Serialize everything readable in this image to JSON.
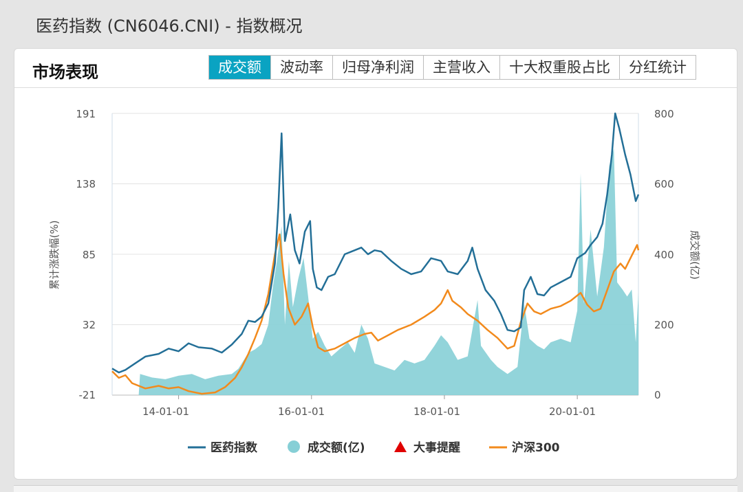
{
  "page": {
    "heading": "医药指数 (CN6046.CNI) - 指数概况"
  },
  "card": {
    "title": "市场表现",
    "tabs": [
      {
        "label": "成交额",
        "active": true
      },
      {
        "label": "波动率",
        "active": false
      },
      {
        "label": "归母净利润",
        "active": false
      },
      {
        "label": "主营收入",
        "active": false
      },
      {
        "label": "十大权重股占比",
        "active": false
      },
      {
        "label": "分红统计",
        "active": false
      }
    ]
  },
  "colors": {
    "index": "#236f97",
    "volume": "#86cfd6",
    "event": "#e00000",
    "csi300": "#f28a1c",
    "accent": "#0aa3c2"
  },
  "chart_data": {
    "type": "line",
    "x_ticks": [
      "14-01-01",
      "16-01-01",
      "18-01-01",
      "20-01-01"
    ],
    "y_left": {
      "label": "累计涨跌幅(%)",
      "ticks": [
        "191",
        "138",
        "85",
        "32",
        "-21"
      ],
      "range": [
        -21,
        191
      ]
    },
    "y_right": {
      "label": "成交额(亿)",
      "ticks": [
        "800",
        "600",
        "400",
        "200",
        "0"
      ],
      "range": [
        0,
        800
      ]
    },
    "legend": [
      {
        "name": "医药指数",
        "marker": "line",
        "color": "#236f97"
      },
      {
        "name": "成交额(亿)",
        "marker": "circle",
        "color": "#86cfd6"
      },
      {
        "name": "大事提醒",
        "marker": "triangle",
        "color": "#e00000"
      },
      {
        "name": "沪深300",
        "marker": "line",
        "color": "#f28a1c"
      }
    ],
    "legend_position": "bottom",
    "grid": true,
    "x_range": [
      2013.0,
      2020.92
    ],
    "series": [
      {
        "name": "医药指数",
        "axis": "left",
        "points": [
          [
            2013.0,
            -1
          ],
          [
            2013.1,
            -4
          ],
          [
            2013.2,
            -2
          ],
          [
            2013.35,
            3
          ],
          [
            2013.5,
            8
          ],
          [
            2013.7,
            10
          ],
          [
            2013.85,
            14
          ],
          [
            2014.0,
            12
          ],
          [
            2014.15,
            18
          ],
          [
            2014.3,
            15
          ],
          [
            2014.5,
            14
          ],
          [
            2014.65,
            11
          ],
          [
            2014.8,
            17
          ],
          [
            2014.95,
            25
          ],
          [
            2015.05,
            35
          ],
          [
            2015.15,
            34
          ],
          [
            2015.25,
            38
          ],
          [
            2015.35,
            48
          ],
          [
            2015.45,
            78
          ],
          [
            2015.5,
            120
          ],
          [
            2015.55,
            176
          ],
          [
            2015.6,
            95
          ],
          [
            2015.68,
            115
          ],
          [
            2015.75,
            88
          ],
          [
            2015.82,
            78
          ],
          [
            2015.9,
            102
          ],
          [
            2015.98,
            110
          ],
          [
            2016.02,
            74
          ],
          [
            2016.08,
            60
          ],
          [
            2016.15,
            58
          ],
          [
            2016.25,
            68
          ],
          [
            2016.35,
            70
          ],
          [
            2016.5,
            85
          ],
          [
            2016.65,
            88
          ],
          [
            2016.75,
            90
          ],
          [
            2016.85,
            85
          ],
          [
            2016.95,
            88
          ],
          [
            2017.05,
            87
          ],
          [
            2017.2,
            80
          ],
          [
            2017.35,
            74
          ],
          [
            2017.5,
            70
          ],
          [
            2017.65,
            72
          ],
          [
            2017.8,
            82
          ],
          [
            2017.95,
            80
          ],
          [
            2018.05,
            72
          ],
          [
            2018.2,
            70
          ],
          [
            2018.35,
            80
          ],
          [
            2018.42,
            90
          ],
          [
            2018.5,
            74
          ],
          [
            2018.62,
            58
          ],
          [
            2018.75,
            50
          ],
          [
            2018.85,
            40
          ],
          [
            2018.95,
            28
          ],
          [
            2019.05,
            27
          ],
          [
            2019.15,
            30
          ],
          [
            2019.2,
            58
          ],
          [
            2019.3,
            68
          ],
          [
            2019.4,
            55
          ],
          [
            2019.5,
            54
          ],
          [
            2019.6,
            60
          ],
          [
            2019.75,
            64
          ],
          [
            2019.9,
            68
          ],
          [
            2020.0,
            82
          ],
          [
            2020.12,
            86
          ],
          [
            2020.2,
            92
          ],
          [
            2020.3,
            98
          ],
          [
            2020.38,
            108
          ],
          [
            2020.45,
            130
          ],
          [
            2020.52,
            160
          ],
          [
            2020.57,
            191
          ],
          [
            2020.63,
            180
          ],
          [
            2020.72,
            160
          ],
          [
            2020.8,
            145
          ],
          [
            2020.88,
            125
          ],
          [
            2020.92,
            130
          ]
        ]
      },
      {
        "name": "沪深300",
        "axis": "left",
        "points": [
          [
            2013.0,
            -3
          ],
          [
            2013.1,
            -8
          ],
          [
            2013.2,
            -6
          ],
          [
            2013.3,
            -12
          ],
          [
            2013.5,
            -16
          ],
          [
            2013.7,
            -14
          ],
          [
            2013.85,
            -16
          ],
          [
            2014.0,
            -15
          ],
          [
            2014.15,
            -18
          ],
          [
            2014.35,
            -20
          ],
          [
            2014.55,
            -19
          ],
          [
            2014.7,
            -15
          ],
          [
            2014.85,
            -8
          ],
          [
            2014.95,
            0
          ],
          [
            2015.05,
            10
          ],
          [
            2015.15,
            22
          ],
          [
            2015.25,
            35
          ],
          [
            2015.35,
            55
          ],
          [
            2015.45,
            85
          ],
          [
            2015.52,
            100
          ],
          [
            2015.58,
            70
          ],
          [
            2015.65,
            45
          ],
          [
            2015.75,
            32
          ],
          [
            2015.85,
            38
          ],
          [
            2015.95,
            48
          ],
          [
            2016.02,
            30
          ],
          [
            2016.1,
            15
          ],
          [
            2016.2,
            12
          ],
          [
            2016.35,
            14
          ],
          [
            2016.5,
            18
          ],
          [
            2016.65,
            22
          ],
          [
            2016.8,
            25
          ],
          [
            2016.9,
            26
          ],
          [
            2017.0,
            20
          ],
          [
            2017.15,
            24
          ],
          [
            2017.3,
            28
          ],
          [
            2017.5,
            32
          ],
          [
            2017.7,
            38
          ],
          [
            2017.85,
            43
          ],
          [
            2017.95,
            48
          ],
          [
            2018.05,
            58
          ],
          [
            2018.12,
            50
          ],
          [
            2018.25,
            45
          ],
          [
            2018.35,
            40
          ],
          [
            2018.5,
            35
          ],
          [
            2018.65,
            28
          ],
          [
            2018.8,
            22
          ],
          [
            2018.95,
            14
          ],
          [
            2019.05,
            16
          ],
          [
            2019.15,
            34
          ],
          [
            2019.25,
            48
          ],
          [
            2019.35,
            42
          ],
          [
            2019.45,
            40
          ],
          [
            2019.6,
            44
          ],
          [
            2019.75,
            46
          ],
          [
            2019.9,
            50
          ],
          [
            2020.05,
            56
          ],
          [
            2020.15,
            47
          ],
          [
            2020.25,
            42
          ],
          [
            2020.35,
            44
          ],
          [
            2020.45,
            58
          ],
          [
            2020.55,
            72
          ],
          [
            2020.65,
            78
          ],
          [
            2020.72,
            74
          ],
          [
            2020.82,
            84
          ],
          [
            2020.9,
            92
          ],
          [
            2020.92,
            88
          ]
        ]
      },
      {
        "name": "成交额(亿)",
        "axis": "right",
        "points": [
          [
            2013.0,
            0
          ],
          [
            2013.4,
            0
          ],
          [
            2013.42,
            60
          ],
          [
            2013.6,
            50
          ],
          [
            2013.8,
            45
          ],
          [
            2014.0,
            55
          ],
          [
            2014.2,
            60
          ],
          [
            2014.4,
            45
          ],
          [
            2014.6,
            55
          ],
          [
            2014.8,
            60
          ],
          [
            2014.9,
            75
          ],
          [
            2015.05,
            120
          ],
          [
            2015.15,
            130
          ],
          [
            2015.25,
            145
          ],
          [
            2015.35,
            200
          ],
          [
            2015.42,
            310
          ],
          [
            2015.48,
            380
          ],
          [
            2015.55,
            480
          ],
          [
            2015.6,
            200
          ],
          [
            2015.66,
            380
          ],
          [
            2015.72,
            250
          ],
          [
            2015.8,
            330
          ],
          [
            2015.88,
            390
          ],
          [
            2015.95,
            280
          ],
          [
            2016.02,
            160
          ],
          [
            2016.1,
            180
          ],
          [
            2016.2,
            140
          ],
          [
            2016.3,
            110
          ],
          [
            2016.42,
            130
          ],
          [
            2016.55,
            150
          ],
          [
            2016.65,
            120
          ],
          [
            2016.75,
            200
          ],
          [
            2016.85,
            160
          ],
          [
            2016.95,
            90
          ],
          [
            2017.1,
            80
          ],
          [
            2017.25,
            70
          ],
          [
            2017.4,
            100
          ],
          [
            2017.55,
            90
          ],
          [
            2017.7,
            100
          ],
          [
            2017.85,
            140
          ],
          [
            2017.95,
            170
          ],
          [
            2018.05,
            150
          ],
          [
            2018.2,
            100
          ],
          [
            2018.35,
            110
          ],
          [
            2018.5,
            270
          ],
          [
            2018.55,
            140
          ],
          [
            2018.7,
            100
          ],
          [
            2018.8,
            80
          ],
          [
            2018.95,
            60
          ],
          [
            2019.1,
            80
          ],
          [
            2019.2,
            260
          ],
          [
            2019.28,
            160
          ],
          [
            2019.4,
            140
          ],
          [
            2019.5,
            130
          ],
          [
            2019.6,
            150
          ],
          [
            2019.75,
            160
          ],
          [
            2019.9,
            150
          ],
          [
            2020.0,
            240
          ],
          [
            2020.05,
            630
          ],
          [
            2020.1,
            260
          ],
          [
            2020.2,
            470
          ],
          [
            2020.3,
            280
          ],
          [
            2020.4,
            420
          ],
          [
            2020.48,
            650
          ],
          [
            2020.55,
            700
          ],
          [
            2020.6,
            320
          ],
          [
            2020.68,
            300
          ],
          [
            2020.75,
            280
          ],
          [
            2020.82,
            300
          ],
          [
            2020.88,
            150
          ],
          [
            2020.92,
            290
          ],
          [
            2020.92,
            0
          ]
        ]
      }
    ]
  }
}
